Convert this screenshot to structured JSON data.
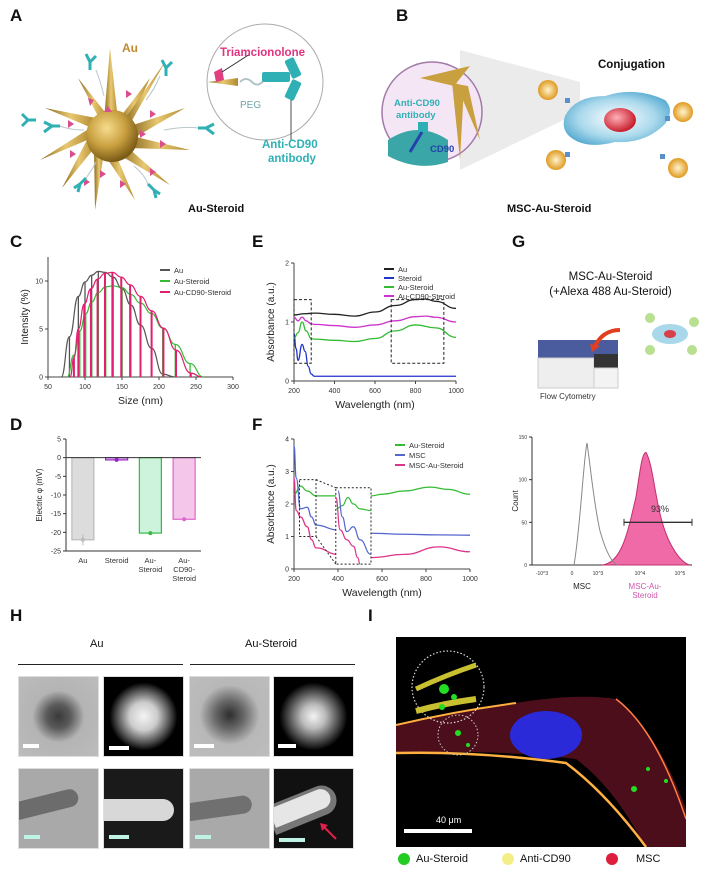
{
  "panels": {
    "A": {
      "letter": "A",
      "labels": {
        "au": "Au",
        "triamcinolone": "Triamcionolone",
        "peg": "PEG",
        "antibody_line1": "Anti-CD90",
        "antibody_line2": "antibody"
      },
      "caption": "Au-Steroid"
    },
    "B": {
      "letter": "B",
      "labels": {
        "conjugation": "Conjugation",
        "antibody_line1": "Anti-CD90",
        "antibody_line2": "antibody",
        "cd90": "CD90"
      },
      "caption": "MSC-Au-Steroid"
    },
    "C": {
      "letter": "C"
    },
    "D": {
      "letter": "D"
    },
    "E": {
      "letter": "E"
    },
    "F": {
      "letter": "F"
    },
    "G": {
      "letter": "G",
      "title_line1": "MSC-Au-Steroid",
      "title_line2": "(+Alexa 488 Au-Steroid)",
      "instrument_label": "Flow Cytometry"
    },
    "H": {
      "letter": "H",
      "group_left": "Au",
      "group_right": "Au-Steroid"
    },
    "I": {
      "letter": "I",
      "scalebar_label": "40 μm",
      "legend": [
        {
          "label": "Au-Steroid",
          "color": "#22cc22"
        },
        {
          "label": "Anti-CD90",
          "color": "#f4ee88"
        },
        {
          "label": "MSC",
          "color": "#dd1e3c"
        }
      ]
    }
  },
  "colors": {
    "au_gold": "#c9a040",
    "antibody_teal": "#2fb0b4",
    "steroid_pink": "#e0407f",
    "au_line": "#555555",
    "steroid_blue": "#2233cc",
    "au_steroid_green": "#33bb33",
    "cd90_steroid_magenta": "#d02fd0",
    "msc_blue": "#5566cc",
    "msc_au_steroid_pink": "#dd3388",
    "flow_fill": "#f06aa8"
  },
  "chart_data": [
    {
      "panel": "C",
      "type": "bar",
      "title": "",
      "xlabel": "Size (nm)",
      "ylabel": "Intensity (%)",
      "xlim": [
        50,
        300
      ],
      "ylim": [
        0,
        12.5
      ],
      "xticks": [
        50,
        100,
        150,
        200,
        250,
        300
      ],
      "yticks": [
        0,
        5,
        10
      ],
      "legend": [
        "Au",
        "Au-Steroid",
        "Au-CD90-Steroid"
      ],
      "series": [
        {
          "name": "Au",
          "color": "#555555",
          "x": [
            68,
            79,
            91,
            100,
            109,
            118,
            127,
            138,
            150,
            162,
            175,
            190,
            205,
            222
          ],
          "values": [
            0,
            4.2,
            8.4,
            9.9,
            10.6,
            11.0,
            10.9,
            10.4,
            9.2,
            7.5,
            5.4,
            3.0,
            0.3,
            0
          ]
        },
        {
          "name": "Au-Steroid",
          "color": "#33bb33",
          "x": [
            76,
            85,
            93,
            101,
            109,
            118,
            128,
            138,
            150,
            162,
            175,
            190,
            205,
            222,
            242,
            260
          ],
          "values": [
            0,
            2.3,
            4.8,
            6.6,
            7.8,
            8.8,
            9.4,
            9.5,
            9.3,
            8.6,
            7.7,
            6.6,
            5.1,
            3.4,
            1.4,
            0
          ]
        },
        {
          "name": "Au-CD90-Steroid",
          "color": "#e0206f",
          "x": [
            80,
            85,
            91,
            99,
            108,
            117,
            127,
            137,
            149,
            161,
            175,
            190,
            206,
            223,
            243,
            258
          ],
          "values": [
            0,
            2.0,
            5.0,
            7.6,
            9.2,
            10.2,
            10.8,
            10.9,
            10.4,
            9.6,
            8.4,
            6.9,
            5.1,
            2.8,
            0.4,
            0
          ]
        }
      ]
    },
    {
      "panel": "D",
      "type": "bar",
      "title": "",
      "xlabel": "",
      "ylabel": "Electric φ (mV)",
      "ylim": [
        -25,
        5
      ],
      "yticks": [
        5,
        0,
        -5,
        -10,
        -15,
        -20,
        -25
      ],
      "categories": [
        "Au",
        "Steroid",
        "Au-Steroid",
        "Au-CD90-Steroid"
      ],
      "category_labels": [
        [
          "Au"
        ],
        [
          "Steroid"
        ],
        [
          "Au-",
          "Steroid"
        ],
        [
          "Au-",
          "CD90-",
          "Steroid"
        ]
      ],
      "values": [
        -22.0,
        -0.6,
        -20.2,
        -16.5
      ],
      "errors": [
        1.5,
        0.5,
        0.4,
        0.3
      ],
      "fill_colors": [
        "#dcdcdc",
        "#e8c8f0",
        "#cdf3dc",
        "#f4c6ea"
      ],
      "edge_colors": [
        "#bbbbbb",
        "#9922cc",
        "#33bb44",
        "#dd66cc"
      ]
    },
    {
      "panel": "E",
      "type": "line",
      "title": "",
      "xlabel": "Wavelength (nm)",
      "ylabel": "Absorbance (a.u.)",
      "xlim": [
        200,
        1000
      ],
      "ylim": [
        0,
        2
      ],
      "xticks": [
        200,
        400,
        600,
        800,
        1000
      ],
      "yticks": [
        0,
        1,
        2
      ],
      "legend": [
        "Au",
        "Steroid",
        "Au-Steroid",
        "Au-CD90-Steroid"
      ],
      "series": [
        {
          "name": "Au",
          "color": "#222222",
          "x": [
            200,
            250,
            300,
            400,
            500,
            600,
            700,
            800,
            850,
            900,
            1000
          ],
          "values": [
            1.12,
            1.14,
            1.15,
            1.13,
            1.1,
            1.17,
            1.28,
            1.38,
            1.39,
            1.35,
            1.23
          ]
        },
        {
          "name": "Steroid",
          "color": "#2233cc",
          "x": [
            200,
            210,
            220,
            240,
            255,
            270,
            285,
            300,
            400,
            600,
            800,
            1000
          ],
          "values": [
            0.8,
            0.55,
            0.35,
            0.62,
            0.5,
            0.25,
            0.12,
            0.08,
            0.08,
            0.08,
            0.08,
            0.08
          ]
        },
        {
          "name": "Au-Steroid",
          "color": "#33bb33",
          "x": [
            200,
            220,
            240,
            260,
            285,
            300,
            400,
            500,
            600,
            700,
            800,
            900,
            1000
          ],
          "values": [
            0.72,
            0.82,
            1.0,
            0.85,
            0.72,
            0.71,
            0.69,
            0.67,
            0.72,
            0.85,
            0.95,
            0.9,
            0.74
          ]
        },
        {
          "name": "Au-CD90-Steroid",
          "color": "#cc33cc",
          "x": [
            200,
            220,
            240,
            260,
            285,
            300,
            400,
            500,
            600,
            700,
            800,
            850,
            900,
            1000
          ],
          "values": [
            1.08,
            1.02,
            1.08,
            1.02,
            0.97,
            0.96,
            0.94,
            0.91,
            0.95,
            1.02,
            1.09,
            1.1,
            1.08,
            1.0
          ]
        }
      ],
      "annotations": [
        "dashed box 200–285 nm",
        "dashed box 680–940 nm"
      ]
    },
    {
      "panel": "F",
      "type": "line",
      "title": "",
      "xlabel": "Wavelength (nm)",
      "ylabel": "Absorbance (a.u.)",
      "xlim": [
        200,
        1000
      ],
      "ylim": [
        0,
        4
      ],
      "xticks": [
        200,
        400,
        600,
        800,
        1000
      ],
      "yticks": [
        0,
        1,
        2,
        3,
        4
      ],
      "legend": [
        "Au-Steroid",
        "MSC",
        "MSC-Au-Steroid"
      ],
      "series": [
        {
          "name": "Au-Steroid",
          "color": "#33bb33",
          "x": [
            200,
            230,
            260,
            300,
            400,
            550,
            600,
            700,
            820,
            900,
            1000
          ],
          "values": [
            2.3,
            2.55,
            2.4,
            2.25,
            2.25,
            2.25,
            2.3,
            2.4,
            2.52,
            2.45,
            2.3
          ]
        },
        {
          "name": "MSC",
          "color": "#5566cc",
          "x": [
            200,
            210,
            230,
            260,
            280,
            300,
            400,
            550,
            700,
            850,
            1000
          ],
          "values": [
            3.8,
            2.8,
            1.85,
            1.9,
            1.6,
            1.35,
            1.2,
            1.1,
            1.07,
            1.05,
            1.04
          ]
        },
        {
          "name": "MSC-Au-Steroid",
          "color": "#dd3388",
          "x": [
            200,
            210,
            230,
            260,
            280,
            300,
            400,
            550,
            700,
            860,
            1000
          ],
          "values": [
            2.8,
            1.8,
            1.6,
            1.3,
            0.9,
            0.65,
            0.45,
            0.35,
            0.45,
            0.68,
            0.53
          ]
        }
      ],
      "annotations": [
        "dashed box 225–300 nm, 1.0–2.75 a.u.",
        "inset zoom box 390–550 nm"
      ]
    },
    {
      "panel": "G",
      "type": "area",
      "title": "",
      "xlabel": "",
      "ylabel": "Count",
      "ylim": [
        0,
        150
      ],
      "yticks": [
        0,
        50,
        100,
        150
      ],
      "xticks": [
        "-10^3",
        "0",
        "10^3",
        "10^4",
        "10^5"
      ],
      "series": [
        {
          "name": "MSC",
          "color": "#888888",
          "filled": false,
          "peak_count": 143,
          "peak_x": "~5×10^2"
        },
        {
          "name": "MSC-Au-Steroid",
          "color": "#f06aa8",
          "filled": true,
          "peak_count": 132,
          "peak_x": "~1.2×10^4"
        }
      ],
      "category_labels": [
        "MSC",
        "MSC-Au-Steroid"
      ],
      "gate": {
        "label": "93%",
        "y": 50,
        "x_range": [
          "~3×10^3",
          "~10^5"
        ]
      }
    }
  ]
}
